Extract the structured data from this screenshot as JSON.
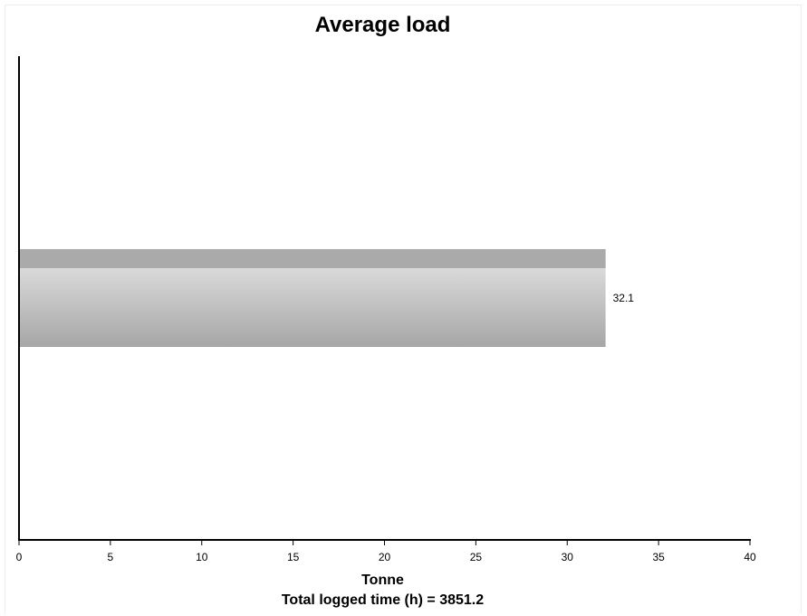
{
  "chart_data": {
    "type": "bar",
    "orientation": "horizontal",
    "title": "Average load",
    "xlabel": "Tonne",
    "subtitle": "Total logged time (h) = 3851.2",
    "ylabel": "",
    "categories": [
      ""
    ],
    "values": [
      32.1
    ],
    "value_labels": [
      "32.1"
    ],
    "xlim": [
      0,
      40
    ],
    "x_ticks": [
      0,
      5,
      10,
      15,
      20,
      25,
      30,
      35,
      40
    ],
    "grid": false,
    "legend": "none",
    "colors": {
      "bar_top": "#e6e6e6",
      "bar_bottom": "#a6a6a6",
      "bar_cap": "#aaaaaa",
      "axis": "#000000"
    }
  }
}
